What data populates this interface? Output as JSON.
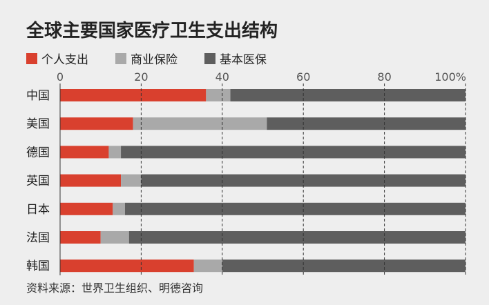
{
  "chart_data": {
    "type": "bar",
    "orientation": "horizontal",
    "stacked": true,
    "title": "全球主要国家医疗卫生支出结构",
    "categories": [
      "中国",
      "美国",
      "德国",
      "英国",
      "日本",
      "法国",
      "韩国"
    ],
    "series": [
      {
        "name": "个人支出",
        "color": "#d9402e",
        "values": [
          36,
          18,
          12,
          15,
          13,
          10,
          33
        ]
      },
      {
        "name": "商业保险",
        "color": "#a9a9a9",
        "values": [
          6,
          33,
          3,
          5,
          3,
          7,
          7
        ]
      },
      {
        "name": "基本医保",
        "color": "#5e5e5e",
        "values": [
          58,
          49,
          85,
          80,
          84,
          83,
          60
        ]
      }
    ],
    "xlim": [
      0,
      100
    ],
    "x_ticks": [
      0,
      20,
      40,
      60,
      80,
      100
    ],
    "x_tick_labels": [
      "0",
      "20",
      "40",
      "60",
      "80",
      "100%"
    ],
    "x_axis_position": "top",
    "grid": true,
    "legend": "top-left",
    "source": "资料来源：世界卫生组织、明德咨询"
  }
}
